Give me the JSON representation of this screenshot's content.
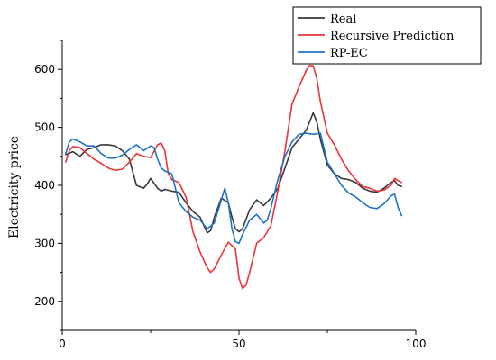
{
  "chart_data": {
    "type": "line",
    "xlabel": "",
    "ylabel": "Electricity price",
    "xlim": [
      0,
      100
    ],
    "ylim": [
      150,
      650
    ],
    "xticks": [
      0,
      50,
      100
    ],
    "yticks": [
      200,
      300,
      400,
      500,
      600
    ],
    "grid": false,
    "legend_position": "top-right",
    "series": [
      {
        "name": "Real",
        "color": "#3a3a3a",
        "x": [
          1,
          3,
          5,
          7,
          9,
          11,
          13,
          15,
          17,
          19,
          21,
          23,
          24,
          25,
          27,
          28,
          29,
          31,
          33,
          35,
          37,
          39,
          41,
          42,
          43,
          45,
          47,
          48,
          49,
          50,
          51,
          53,
          55,
          57,
          59,
          61,
          63,
          65,
          67,
          69,
          70,
          71,
          72,
          73,
          75,
          77,
          79,
          81,
          83,
          85,
          87,
          89,
          91,
          93,
          94,
          95,
          96
        ],
        "y": [
          453,
          458,
          450,
          462,
          465,
          470,
          470,
          468,
          460,
          445,
          400,
          395,
          402,
          412,
          395,
          390,
          393,
          390,
          388,
          370,
          355,
          345,
          318,
          322,
          345,
          378,
          370,
          345,
          325,
          320,
          325,
          358,
          375,
          365,
          378,
          395,
          430,
          465,
          480,
          495,
          510,
          525,
          510,
          480,
          435,
          420,
          412,
          410,
          405,
          395,
          390,
          388,
          395,
          405,
          408,
          400,
          398
        ]
      },
      {
        "name": "Recursive Prediction",
        "color": "#e8353a",
        "x": [
          1,
          2,
          3,
          5,
          7,
          9,
          11,
          13,
          15,
          17,
          19,
          21,
          23,
          25,
          27,
          28,
          29,
          30,
          31,
          33,
          35,
          37,
          39,
          41,
          42,
          43,
          45,
          47,
          49,
          50,
          51,
          52,
          53,
          55,
          57,
          59,
          61,
          63,
          65,
          67,
          69,
          70,
          71,
          72,
          73,
          75,
          77,
          79,
          81,
          83,
          85,
          87,
          89,
          91,
          93,
          94,
          95,
          96
        ],
        "y": [
          440,
          460,
          467,
          465,
          455,
          445,
          438,
          430,
          426,
          428,
          440,
          455,
          450,
          448,
          470,
          473,
          460,
          420,
          410,
          405,
          380,
          320,
          285,
          258,
          250,
          256,
          280,
          302,
          290,
          240,
          222,
          228,
          250,
          300,
          310,
          330,
          390,
          460,
          540,
          570,
          598,
          607,
          606,
          585,
          545,
          490,
          470,
          445,
          425,
          410,
          398,
          395,
          390,
          392,
          400,
          412,
          408,
          405
        ]
      },
      {
        "name": "RP-EC",
        "color": "#1f73c7",
        "x": [
          1,
          2,
          3,
          5,
          7,
          9,
          11,
          13,
          15,
          17,
          19,
          21,
          23,
          25,
          26,
          27,
          28,
          29,
          31,
          33,
          35,
          37,
          39,
          41,
          43,
          45,
          46,
          47,
          48,
          49,
          50,
          51,
          53,
          55,
          57,
          58,
          59,
          61,
          63,
          65,
          67,
          69,
          71,
          73,
          75,
          77,
          79,
          81,
          83,
          85,
          87,
          89,
          91,
          93,
          94,
          95,
          96
        ],
        "y": [
          455,
          475,
          480,
          475,
          468,
          468,
          455,
          447,
          447,
          452,
          462,
          470,
          460,
          468,
          465,
          445,
          430,
          425,
          420,
          370,
          355,
          345,
          340,
          325,
          335,
          375,
          395,
          370,
          325,
          303,
          300,
          315,
          340,
          350,
          335,
          340,
          360,
          410,
          450,
          475,
          488,
          490,
          488,
          490,
          440,
          420,
          400,
          387,
          380,
          370,
          362,
          360,
          368,
          382,
          385,
          362,
          348
        ]
      }
    ]
  }
}
